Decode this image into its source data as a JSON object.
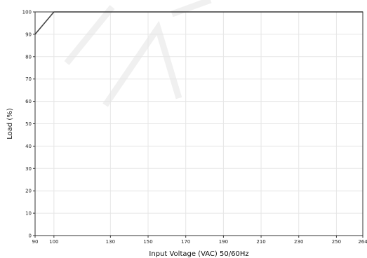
{
  "chart_data": {
    "type": "line",
    "title": "",
    "xlabel": "Input Voltage (VAC) 50/60Hz",
    "ylabel": "Load (%)",
    "xlim": [
      90,
      264
    ],
    "ylim": [
      0,
      100
    ],
    "xticks": [
      90,
      100,
      130,
      150,
      170,
      190,
      210,
      230,
      250,
      264
    ],
    "yticks": [
      0,
      10,
      20,
      30,
      40,
      50,
      60,
      70,
      80,
      90,
      100
    ],
    "grid": true,
    "legend": "none",
    "series": [
      {
        "x": [
          90,
          100,
          264
        ],
        "y": [
          90,
          100,
          100
        ],
        "color": "#444444"
      }
    ]
  }
}
